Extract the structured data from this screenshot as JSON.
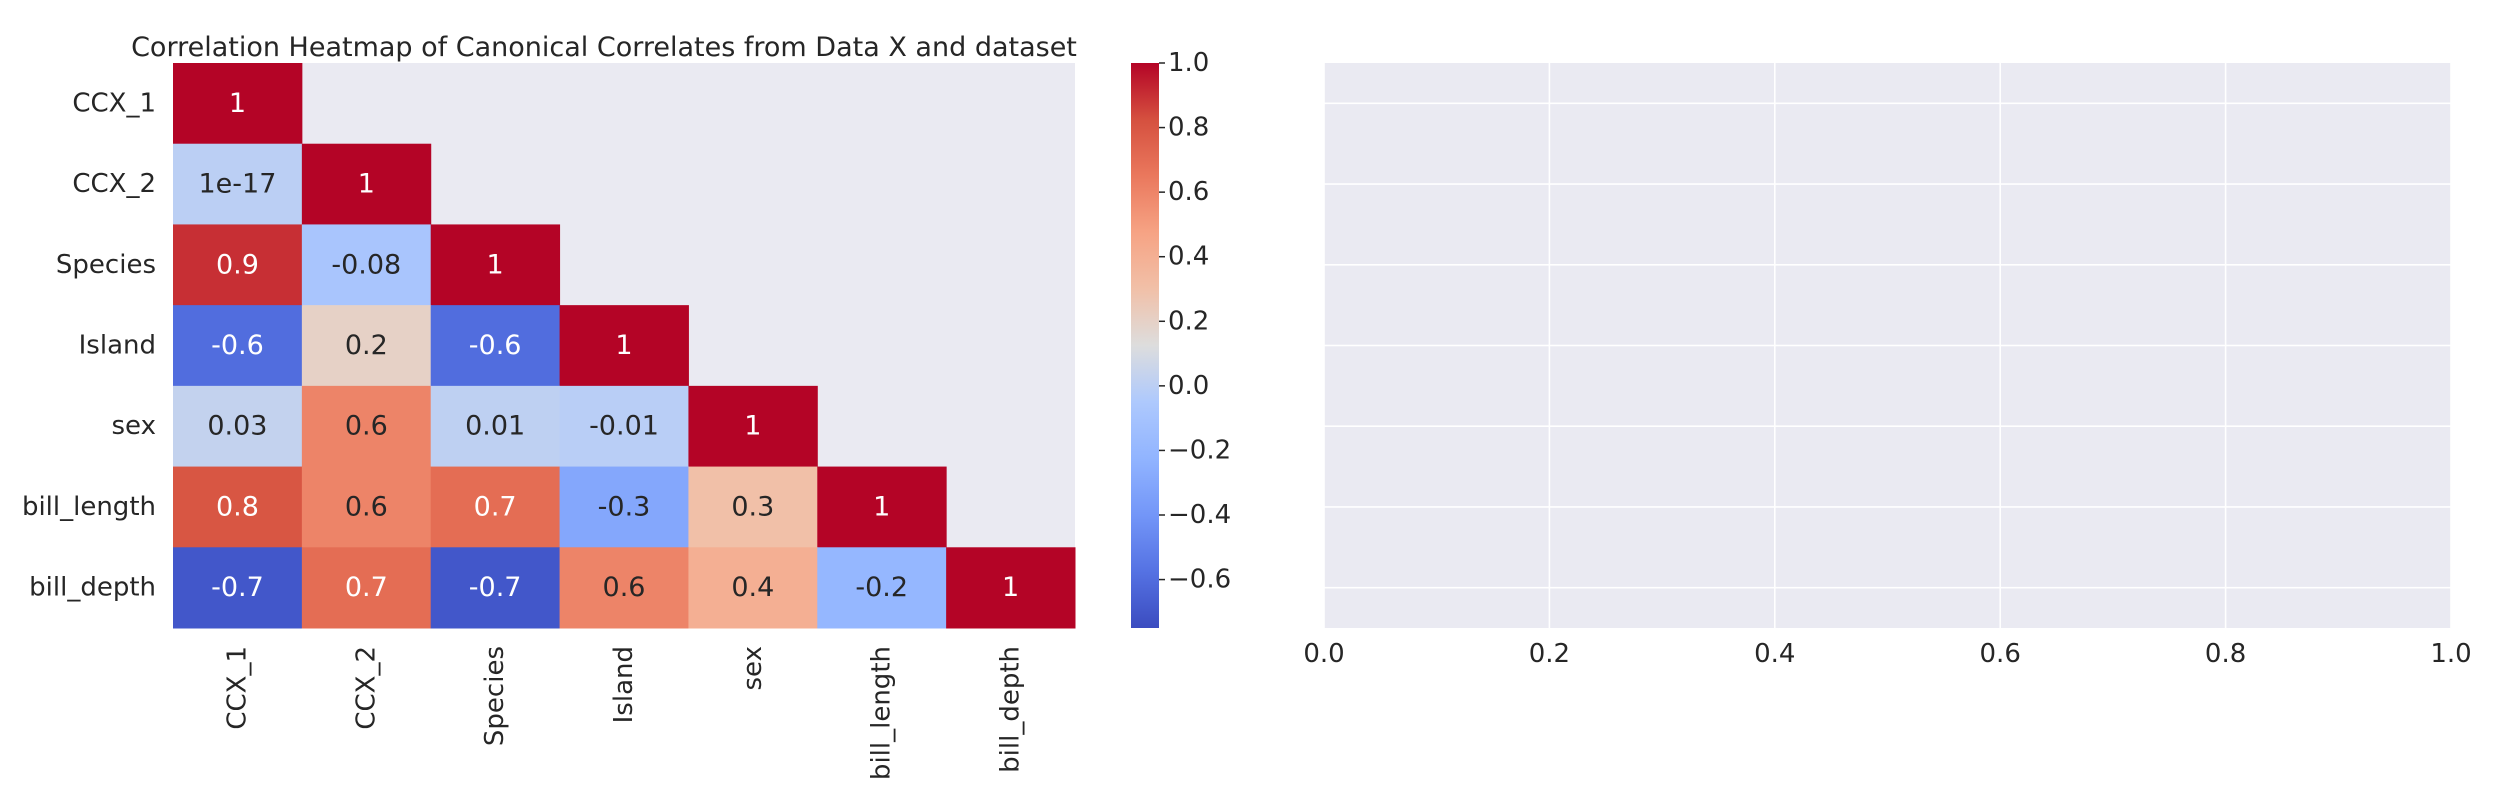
{
  "chart_data": [
    {
      "type": "heatmap",
      "title": "Correlation Heatmap of Canonical Correlates from Data X and dataset",
      "row_labels": [
        "CCX_1",
        "CCX_2",
        "Species",
        "Island",
        "sex",
        "bill_length",
        "bill_depth"
      ],
      "col_labels": [
        "CCX_1",
        "CCX_2",
        "Species",
        "Island",
        "sex",
        "bill_length",
        "bill_depth"
      ],
      "mask": "upper-triangle",
      "values": [
        [
          1,
          null,
          null,
          null,
          null,
          null,
          null
        ],
        [
          1e-17,
          1,
          null,
          null,
          null,
          null,
          null
        ],
        [
          0.9,
          -0.08,
          1,
          null,
          null,
          null,
          null
        ],
        [
          -0.6,
          0.2,
          -0.6,
          1,
          null,
          null,
          null
        ],
        [
          0.03,
          0.6,
          0.01,
          -0.01,
          1,
          null,
          null
        ],
        [
          0.8,
          0.6,
          0.7,
          -0.3,
          0.3,
          1,
          null
        ],
        [
          -0.7,
          0.7,
          -0.7,
          0.6,
          0.4,
          -0.2,
          1
        ]
      ],
      "annotations": [
        [
          "1",
          "",
          "",
          "",
          "",
          "",
          ""
        ],
        [
          "1e-17",
          "1",
          "",
          "",
          "",
          "",
          ""
        ],
        [
          "0.9",
          "-0.08",
          "1",
          "",
          "",
          "",
          ""
        ],
        [
          "-0.6",
          "0.2",
          "-0.6",
          "1",
          "",
          "",
          ""
        ],
        [
          "0.03",
          "0.6",
          "0.01",
          "-0.01",
          "1",
          "",
          ""
        ],
        [
          "0.8",
          "0.6",
          "0.7",
          "-0.3",
          "0.3",
          "1",
          ""
        ],
        [
          "-0.7",
          "0.7",
          "-0.7",
          "0.6",
          "0.4",
          "-0.2",
          "1"
        ]
      ],
      "colormap": "coolwarm",
      "colorbar": {
        "range": [
          -0.75,
          1.0
        ],
        "ticks": [
          -0.6,
          -0.4,
          -0.2,
          0.0,
          0.2,
          0.4,
          0.6,
          0.8,
          1.0
        ],
        "tick_labels": [
          "−0.6",
          "−0.4",
          "−0.2",
          "0.0",
          "0.2",
          "0.4",
          "0.6",
          "0.8",
          "1.0"
        ]
      },
      "background": "#eaeaf2"
    },
    {
      "type": "scatter",
      "title": "",
      "xlabel": "",
      "ylabel": "",
      "xlim": [
        0.0,
        1.0
      ],
      "x_ticks": [
        0.0,
        0.2,
        0.4,
        0.6,
        0.8,
        1.0
      ],
      "x_tick_labels": [
        "0.0",
        "0.2",
        "0.4",
        "0.6",
        "0.8",
        "1.0"
      ],
      "y_tick_labels_shown": false,
      "grid": true,
      "series": [],
      "background": "#eaeaf2"
    }
  ]
}
